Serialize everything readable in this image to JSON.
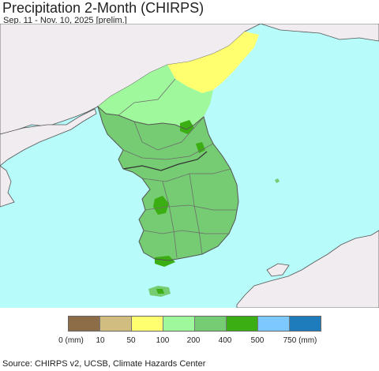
{
  "header": {
    "title": "Precipitation 2-Month (CHIRPS)",
    "subtitle": "Sep. 11 - Nov. 10, 2025 [prelim.]"
  },
  "legend": {
    "colors": [
      "#8c6d47",
      "#d2bd81",
      "#ffff6f",
      "#9ff99c",
      "#75cc72",
      "#3aae12",
      "#7dc8ff",
      "#1e7cbd"
    ],
    "labels": [
      "0 (mm)",
      "10",
      "50",
      "100",
      "200",
      "400",
      "500",
      "750 (mm)"
    ]
  },
  "map": {
    "sea_color": "#b8fbfb",
    "foreign_land_color": "#f0ecef",
    "region_colors": {
      "north_highlands": "#ffff6f",
      "north_mid": "#9ff99c",
      "main": "#75cc72",
      "wettest_spots": "#3aae12"
    }
  },
  "footer": {
    "source": "Source: CHIRPS v2, UCSB, Climate Hazards Center"
  }
}
